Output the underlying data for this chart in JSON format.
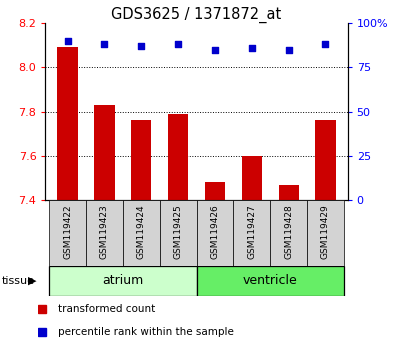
{
  "title": "GDS3625 / 1371872_at",
  "samples": [
    "GSM119422",
    "GSM119423",
    "GSM119424",
    "GSM119425",
    "GSM119426",
    "GSM119427",
    "GSM119428",
    "GSM119429"
  ],
  "transformed_counts": [
    8.09,
    7.83,
    7.76,
    7.79,
    7.48,
    7.6,
    7.47,
    7.76
  ],
  "percentile_ranks": [
    90,
    88,
    87,
    88,
    85,
    86,
    85,
    88
  ],
  "bar_color": "#cc0000",
  "dot_color": "#0000cc",
  "ylim_left": [
    7.4,
    8.2
  ],
  "ylim_right": [
    0,
    100
  ],
  "yticks_left": [
    7.4,
    7.6,
    7.8,
    8.0,
    8.2
  ],
  "yticks_right": [
    0,
    25,
    50,
    75,
    100
  ],
  "groups": [
    {
      "label": "atrium",
      "start": 0,
      "end": 3,
      "color": "#ccffcc"
    },
    {
      "label": "ventricle",
      "start": 4,
      "end": 7,
      "color": "#66ee66"
    }
  ],
  "tissue_label": "tissue",
  "legend_items": [
    {
      "label": "transformed count",
      "color": "#cc0000"
    },
    {
      "label": "percentile rank within the sample",
      "color": "#0000cc"
    }
  ],
  "bar_width": 0.55,
  "baseline": 7.4,
  "grid_yticks": [
    7.6,
    7.8,
    8.0
  ]
}
